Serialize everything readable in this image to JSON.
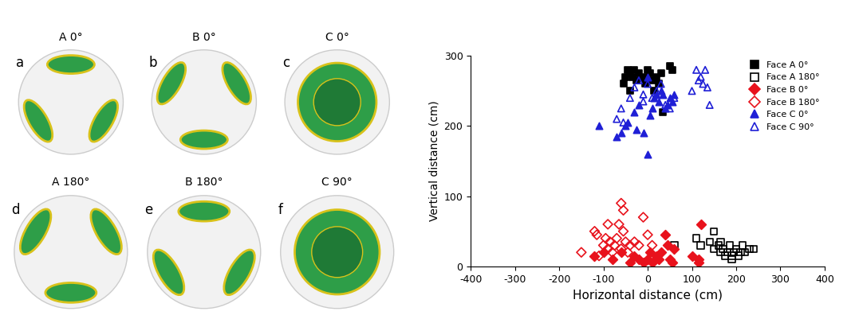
{
  "images": [
    {
      "letter": "a",
      "title": "A 0°"
    },
    {
      "letter": "b",
      "title": "B 0°"
    },
    {
      "letter": "c",
      "title": "C 0°"
    },
    {
      "letter": "d",
      "title": "A 180°"
    },
    {
      "letter": "e",
      "title": "B 180°"
    },
    {
      "letter": "f",
      "title": "C 90°"
    }
  ],
  "chart_data": {
    "type": "scatter",
    "x_label": "Horizontal distance (cm)",
    "y_label": "Vertical distance (cm)",
    "xlim": [
      -400,
      400
    ],
    "xticks": [
      -400,
      -300,
      -200,
      -100,
      0,
      100,
      200,
      300,
      400
    ],
    "ylim": [
      0,
      300
    ],
    "yticks": [
      0,
      100,
      200,
      300
    ],
    "legend": "upper right",
    "series": [
      {
        "name": "Face A 0°",
        "color": "#000000",
        "marker": "filled_square",
        "x": [
          -50,
          -45,
          -40,
          -35,
          -30,
          -25,
          -20,
          -10,
          0,
          5,
          10,
          20,
          25,
          30,
          -40,
          -55,
          50,
          55,
          35,
          15,
          -5
        ],
        "values": [
          270,
          280,
          275,
          270,
          280,
          265,
          275,
          270,
          280,
          275,
          265,
          270,
          260,
          275,
          250,
          260,
          285,
          280,
          220,
          250,
          260
        ]
      },
      {
        "name": "Face A 180°",
        "color": "#000000",
        "marker": "open_square",
        "x": [
          110,
          120,
          140,
          150,
          150,
          160,
          165,
          170,
          175,
          180,
          185,
          190,
          195,
          200,
          205,
          210,
          215,
          220,
          230,
          240,
          60,
          190,
          165
        ],
        "values": [
          40,
          30,
          35,
          50,
          25,
          30,
          20,
          25,
          15,
          20,
          30,
          10,
          20,
          25,
          15,
          20,
          30,
          20,
          25,
          25,
          30,
          15,
          35
        ]
      },
      {
        "name": "Face B 0°",
        "color": "#e8121c",
        "marker": "filled_diamond",
        "x": [
          -120,
          -80,
          -60,
          -40,
          -30,
          -20,
          -10,
          0,
          5,
          10,
          20,
          25,
          30,
          40,
          45,
          50,
          55,
          60,
          100,
          115,
          120,
          115,
          -100
        ],
        "values": [
          15,
          10,
          20,
          5,
          15,
          10,
          5,
          10,
          20,
          5,
          15,
          10,
          20,
          45,
          30,
          10,
          5,
          25,
          15,
          10,
          60,
          5,
          20
        ]
      },
      {
        "name": "Face B 180°",
        "color": "#e8121c",
        "marker": "open_diamond",
        "x": [
          -150,
          -120,
          -115,
          -100,
          -95,
          -90,
          -85,
          -80,
          -75,
          -70,
          -65,
          -60,
          -55,
          -55,
          -50,
          -45,
          -40,
          -30,
          -20,
          -10,
          0,
          10,
          -60,
          -90,
          -110
        ],
        "values": [
          20,
          50,
          45,
          30,
          40,
          25,
          35,
          20,
          30,
          40,
          60,
          90,
          80,
          50,
          35,
          20,
          30,
          35,
          30,
          70,
          45,
          30,
          25,
          60,
          15
        ]
      },
      {
        "name": "Face C 0°",
        "color": "#1f1fd6",
        "marker": "filled_triangle",
        "x": [
          -110,
          -70,
          -60,
          -50,
          -45,
          -30,
          -25,
          -10,
          0,
          5,
          10,
          15,
          20,
          25,
          30,
          35,
          40,
          45,
          50,
          55,
          60,
          0,
          -20
        ],
        "values": [
          200,
          185,
          190,
          200,
          205,
          220,
          195,
          190,
          160,
          215,
          225,
          240,
          245,
          235,
          250,
          245,
          225,
          230,
          240,
          235,
          245,
          270,
          230
        ]
      },
      {
        "name": "Face C 90°",
        "color": "#1f1fd6",
        "marker": "open_triangle",
        "x": [
          -70,
          -60,
          -55,
          -40,
          -30,
          -20,
          -10,
          0,
          10,
          20,
          30,
          40,
          50,
          60,
          100,
          110,
          115,
          120,
          125,
          130,
          135,
          140,
          -10
        ],
        "values": [
          210,
          225,
          205,
          240,
          255,
          265,
          245,
          260,
          240,
          250,
          260,
          230,
          225,
          240,
          250,
          280,
          265,
          270,
          260,
          280,
          255,
          230,
          235
        ]
      }
    ]
  }
}
